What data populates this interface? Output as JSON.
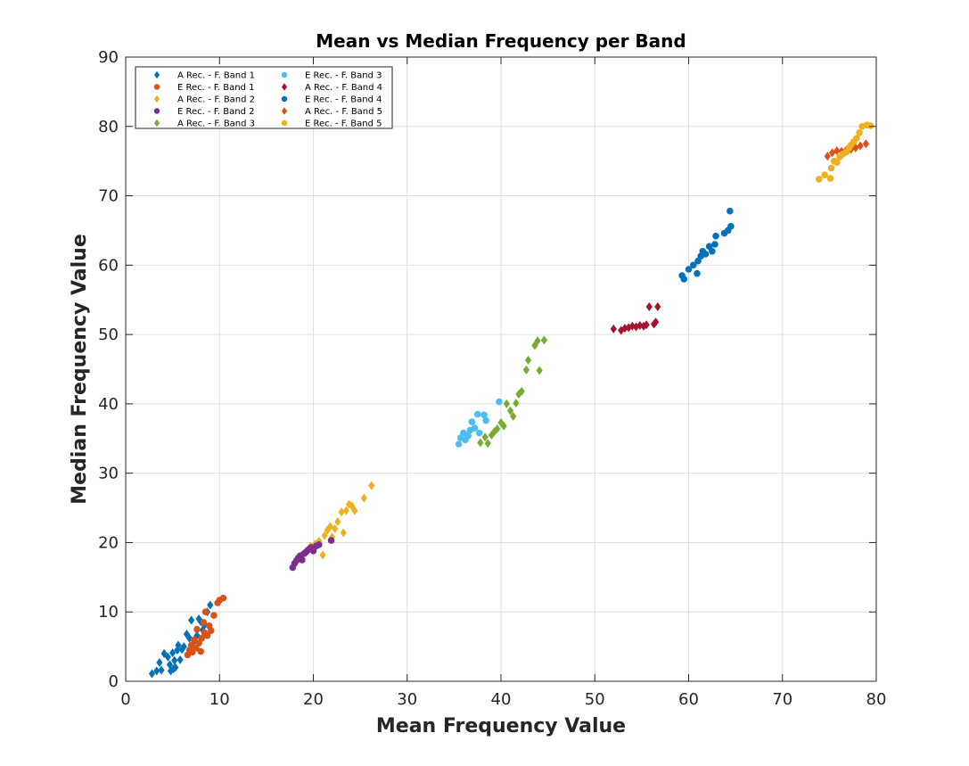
{
  "chart_data": {
    "type": "scatter",
    "title": "Mean vs Median Frequency per Band",
    "xlabel": "Mean Frequency Value",
    "ylabel": "Median Frequency Value",
    "xlim": [
      0,
      80
    ],
    "ylim": [
      0,
      90
    ],
    "xticks": [
      "0",
      "10",
      "20",
      "30",
      "40",
      "50",
      "60",
      "70",
      "80"
    ],
    "yticks": [
      "0",
      "10",
      "20",
      "30",
      "40",
      "50",
      "60",
      "70",
      "80",
      "90"
    ],
    "grid": true,
    "legend_position": "top-left",
    "series": [
      {
        "name": "A Rec. - F. Band 1",
        "marker": "diamond",
        "color": "#0072BD",
        "points": [
          [
            2.8,
            1.1
          ],
          [
            3.3,
            1.5
          ],
          [
            3.6,
            2.7
          ],
          [
            3.8,
            1.6
          ],
          [
            4.1,
            4.0
          ],
          [
            4.5,
            3.5
          ],
          [
            4.7,
            2.4
          ],
          [
            4.8,
            1.5
          ],
          [
            5.0,
            4.1
          ],
          [
            5.1,
            1.8
          ],
          [
            5.2,
            3.0
          ],
          [
            5.3,
            2.0
          ],
          [
            5.5,
            4.5
          ],
          [
            5.6,
            5.2
          ],
          [
            5.8,
            3.1
          ],
          [
            6.0,
            4.6
          ],
          [
            6.2,
            5.0
          ],
          [
            6.5,
            6.8
          ],
          [
            6.8,
            6.2
          ],
          [
            7.0,
            8.8
          ],
          [
            7.3,
            5.8
          ],
          [
            7.6,
            6.6
          ],
          [
            7.8,
            9.0
          ],
          [
            8.0,
            8.6
          ],
          [
            8.2,
            7.4
          ],
          [
            8.4,
            8.1
          ],
          [
            8.7,
            10.0
          ],
          [
            9.0,
            11.0
          ]
        ]
      },
      {
        "name": "E Rec. - F. Band 1",
        "marker": "circle",
        "color": "#D95319",
        "points": [
          [
            6.6,
            3.8
          ],
          [
            6.8,
            4.5
          ],
          [
            7.0,
            5.2
          ],
          [
            7.1,
            4.2
          ],
          [
            7.3,
            6.0
          ],
          [
            7.5,
            4.8
          ],
          [
            7.6,
            7.5
          ],
          [
            7.8,
            5.5
          ],
          [
            8.0,
            4.3
          ],
          [
            8.1,
            6.2
          ],
          [
            8.3,
            8.5
          ],
          [
            8.4,
            7.0
          ],
          [
            8.5,
            10.0
          ],
          [
            8.7,
            6.6
          ],
          [
            8.9,
            8.0
          ],
          [
            9.1,
            7.3
          ],
          [
            9.4,
            9.5
          ],
          [
            9.8,
            11.3
          ],
          [
            10.0,
            11.7
          ],
          [
            10.4,
            12.0
          ]
        ]
      },
      {
        "name": "A Rec. - F. Band 2",
        "marker": "diamond",
        "color": "#EDB120",
        "points": [
          [
            19.7,
            19.5
          ],
          [
            20.2,
            19.8
          ],
          [
            20.6,
            20.2
          ],
          [
            21.0,
            18.2
          ],
          [
            21.2,
            21.0
          ],
          [
            21.5,
            21.8
          ],
          [
            21.8,
            22.3
          ],
          [
            22.0,
            20.8
          ],
          [
            22.3,
            22.0
          ],
          [
            22.6,
            23.0
          ],
          [
            23.0,
            24.4
          ],
          [
            23.2,
            21.4
          ],
          [
            23.5,
            24.6
          ],
          [
            23.8,
            25.5
          ],
          [
            24.1,
            25.3
          ],
          [
            24.4,
            24.6
          ],
          [
            25.4,
            26.4
          ],
          [
            26.2,
            28.2
          ]
        ]
      },
      {
        "name": "E Rec. - F. Band 2",
        "marker": "circle",
        "color": "#7E2F8E",
        "points": [
          [
            17.8,
            16.4
          ],
          [
            18.0,
            17.0
          ],
          [
            18.2,
            17.4
          ],
          [
            18.4,
            17.8
          ],
          [
            18.6,
            18.1
          ],
          [
            18.8,
            17.5
          ],
          [
            19.0,
            18.4
          ],
          [
            19.2,
            18.6
          ],
          [
            19.4,
            18.9
          ],
          [
            19.6,
            19.1
          ],
          [
            19.8,
            19.3
          ],
          [
            20.0,
            18.8
          ],
          [
            20.3,
            19.5
          ],
          [
            20.6,
            19.7
          ],
          [
            21.9,
            20.3
          ]
        ]
      },
      {
        "name": "A Rec. - F. Band 3",
        "marker": "diamond",
        "color": "#77AC30",
        "points": [
          [
            37.8,
            34.4
          ],
          [
            38.3,
            35.2
          ],
          [
            38.6,
            34.3
          ],
          [
            39.0,
            35.5
          ],
          [
            39.3,
            36.0
          ],
          [
            39.6,
            36.4
          ],
          [
            40.0,
            37.3
          ],
          [
            40.3,
            36.8
          ],
          [
            40.6,
            40.0
          ],
          [
            41.0,
            39.0
          ],
          [
            41.3,
            38.2
          ],
          [
            41.6,
            40.1
          ],
          [
            41.9,
            41.4
          ],
          [
            42.2,
            41.8
          ],
          [
            42.7,
            44.9
          ],
          [
            42.9,
            46.3
          ],
          [
            43.6,
            48.4
          ],
          [
            43.9,
            49.1
          ],
          [
            44.1,
            44.8
          ],
          [
            44.6,
            49.2
          ]
        ]
      },
      {
        "name": "E Rec. - F. Band 3",
        "marker": "circle",
        "color": "#4DBEEE",
        "points": [
          [
            35.5,
            34.2
          ],
          [
            35.7,
            35.1
          ],
          [
            36.0,
            35.8
          ],
          [
            36.2,
            34.8
          ],
          [
            36.5,
            35.4
          ],
          [
            36.7,
            36.2
          ],
          [
            36.9,
            37.4
          ],
          [
            37.2,
            36.5
          ],
          [
            37.5,
            38.5
          ],
          [
            37.7,
            35.8
          ],
          [
            38.2,
            38.4
          ],
          [
            38.4,
            37.6
          ],
          [
            39.8,
            40.3
          ]
        ]
      },
      {
        "name": "A Rec. - F. Band 4",
        "marker": "diamond",
        "color": "#A2142F",
        "points": [
          [
            52.0,
            50.8
          ],
          [
            52.8,
            50.6
          ],
          [
            53.2,
            50.9
          ],
          [
            53.6,
            51.0
          ],
          [
            54.0,
            51.2
          ],
          [
            54.4,
            51.1
          ],
          [
            54.8,
            51.3
          ],
          [
            55.2,
            51.2
          ],
          [
            55.5,
            51.4
          ],
          [
            55.8,
            54.0
          ],
          [
            56.3,
            51.5
          ],
          [
            56.5,
            51.8
          ],
          [
            56.7,
            54.0
          ]
        ]
      },
      {
        "name": "E Rec. - F. Band 4",
        "marker": "circle",
        "color": "#0072BD",
        "points": [
          [
            59.3,
            58.5
          ],
          [
            59.5,
            58.0
          ],
          [
            60.0,
            59.4
          ],
          [
            60.5,
            60.0
          ],
          [
            60.9,
            58.8
          ],
          [
            61.0,
            60.6
          ],
          [
            61.3,
            61.3
          ],
          [
            61.5,
            62.0
          ],
          [
            61.8,
            61.6
          ],
          [
            62.2,
            62.7
          ],
          [
            62.5,
            62.0
          ],
          [
            62.8,
            63.0
          ],
          [
            62.9,
            64.2
          ],
          [
            63.8,
            64.6
          ],
          [
            64.2,
            65.0
          ],
          [
            64.5,
            65.6
          ],
          [
            64.4,
            67.8
          ]
        ]
      },
      {
        "name": "A Rec. - F. Band 5",
        "marker": "diamond",
        "color": "#D95319",
        "points": [
          [
            74.8,
            75.7
          ],
          [
            75.3,
            76.2
          ],
          [
            75.8,
            76.5
          ],
          [
            76.3,
            76.4
          ],
          [
            76.8,
            76.6
          ],
          [
            77.3,
            76.7
          ],
          [
            77.8,
            76.9
          ],
          [
            78.3,
            77.2
          ],
          [
            78.9,
            77.5
          ]
        ]
      },
      {
        "name": "E Rec. - F. Band 5",
        "marker": "circle",
        "color": "#EDB120",
        "points": [
          [
            73.9,
            72.4
          ],
          [
            74.5,
            73.0
          ],
          [
            75.1,
            72.5
          ],
          [
            75.2,
            74.0
          ],
          [
            75.5,
            75.0
          ],
          [
            75.8,
            74.8
          ],
          [
            76.1,
            75.6
          ],
          [
            76.4,
            76.0
          ],
          [
            76.8,
            76.3
          ],
          [
            77.1,
            76.9
          ],
          [
            77.3,
            77.3
          ],
          [
            77.6,
            77.8
          ],
          [
            77.9,
            78.3
          ],
          [
            78.2,
            79.1
          ],
          [
            78.5,
            80.0
          ],
          [
            79.0,
            80.2
          ],
          [
            79.4,
            80.1
          ]
        ]
      }
    ]
  }
}
